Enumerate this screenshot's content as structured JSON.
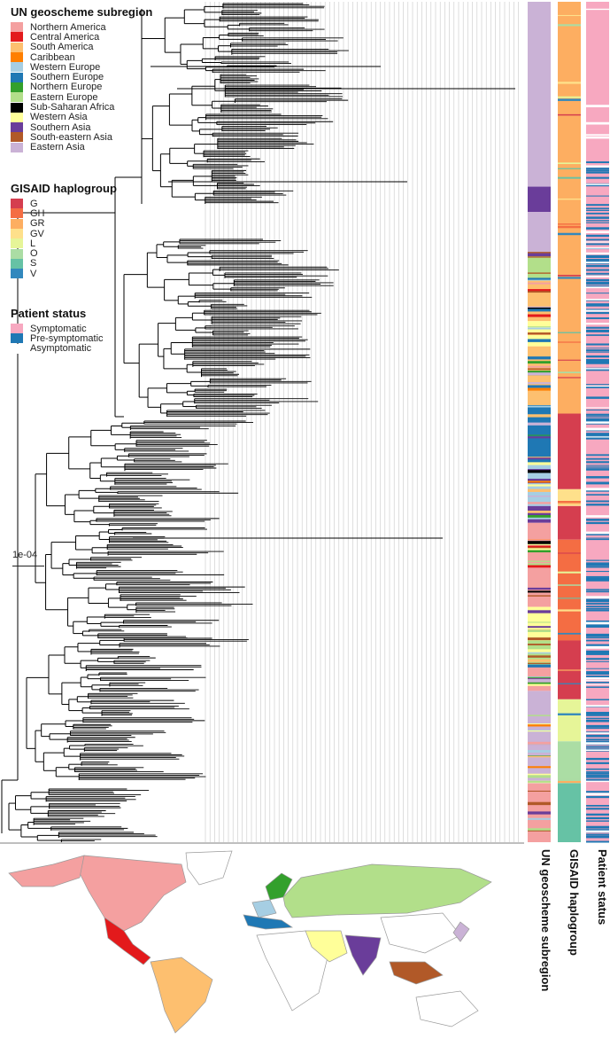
{
  "legend_region": {
    "title": "UN geoscheme subregion",
    "items": [
      {
        "label": "Northern America",
        "color": "#f4a0a0"
      },
      {
        "label": "Central America",
        "color": "#e31a1c"
      },
      {
        "label": "South America",
        "color": "#fdbf6f"
      },
      {
        "label": "Caribbean",
        "color": "#ff7f00"
      },
      {
        "label": "Western Europe",
        "color": "#a6cee3"
      },
      {
        "label": "Southern Europe",
        "color": "#1f78b4"
      },
      {
        "label": "Northern Europe",
        "color": "#33a02c"
      },
      {
        "label": "Eastern Europe",
        "color": "#b2df8a"
      },
      {
        "label": "Sub-Saharan Africa",
        "color": "#000000"
      },
      {
        "label": "Western Asia",
        "color": "#ffff99"
      },
      {
        "label": "Southern Asia",
        "color": "#6a3d9a"
      },
      {
        "label": "South-eastern Asia",
        "color": "#b15928"
      },
      {
        "label": "Eastern Asia",
        "color": "#cab2d6"
      }
    ]
  },
  "legend_haplo": {
    "title": "GISAID haplogroup",
    "items": [
      {
        "label": "G",
        "color": "#d53e4f"
      },
      {
        "label": "GH",
        "color": "#f46d43"
      },
      {
        "label": "GR",
        "color": "#fdae61"
      },
      {
        "label": "GV",
        "color": "#fee08b"
      },
      {
        "label": "L",
        "color": "#e6f598"
      },
      {
        "label": "O",
        "color": "#abdda4"
      },
      {
        "label": "S",
        "color": "#66c2a5"
      },
      {
        "label": "V",
        "color": "#3288bd"
      }
    ]
  },
  "legend_status": {
    "title": "Patient status",
    "items": [
      {
        "label": "Symptomatic",
        "color": "#f7a8c0"
      },
      {
        "label": "Pre-symptomatic",
        "color": "#1f78b4"
      },
      {
        "label": "Asymptomatic",
        "color": "#ffffff"
      }
    ]
  },
  "scale_bar": {
    "label": "1e-04"
  },
  "columns": {
    "region": "UN geoscheme subregion",
    "haplo": "GISAID haplogroup",
    "status": "Patient status"
  },
  "haplo_blocks": [
    {
      "group": "GR",
      "from": 0,
      "to": 0.49
    },
    {
      "group": "G",
      "from": 0.49,
      "to": 0.58
    },
    {
      "group": "GV",
      "from": 0.58,
      "to": 0.6
    },
    {
      "group": "G",
      "from": 0.6,
      "to": 0.64
    },
    {
      "group": "GH",
      "from": 0.64,
      "to": 0.76
    },
    {
      "group": "G",
      "from": 0.76,
      "to": 0.83
    },
    {
      "group": "L",
      "from": 0.83,
      "to": 0.88
    },
    {
      "group": "O",
      "from": 0.88,
      "to": 0.93
    },
    {
      "group": "S",
      "from": 0.93,
      "to": 1.0
    }
  ],
  "region_blocks": [
    {
      "region": "Eastern Asia",
      "from": 0,
      "to": 0.22
    },
    {
      "region": "Southern Asia",
      "from": 0.22,
      "to": 0.25
    },
    {
      "region": "Eastern Asia",
      "from": 0.25,
      "to": 0.3
    },
    {
      "region": "Eastern Europe",
      "from": 0.3,
      "to": 0.33
    },
    {
      "region": "South America",
      "from": 0.33,
      "to": 0.38
    },
    {
      "region": "Western Asia",
      "from": 0.38,
      "to": 0.41
    },
    {
      "region": "South America",
      "from": 0.41,
      "to": 0.48
    },
    {
      "region": "Southern Europe",
      "from": 0.48,
      "to": 0.55
    },
    {
      "region": "Western Europe",
      "from": 0.55,
      "to": 0.6
    },
    {
      "region": "Southern Asia",
      "from": 0.6,
      "to": 0.62
    },
    {
      "region": "Northern America",
      "from": 0.62,
      "to": 0.72
    },
    {
      "region": "Western Asia",
      "from": 0.72,
      "to": 0.76
    },
    {
      "region": "Eastern Europe",
      "from": 0.76,
      "to": 0.79
    },
    {
      "region": "Northern America",
      "from": 0.79,
      "to": 0.82
    },
    {
      "region": "Eastern Asia",
      "from": 0.82,
      "to": 0.93
    },
    {
      "region": "Northern America",
      "from": 0.93,
      "to": 1.0
    }
  ],
  "map_regions": [
    {
      "name": "Northern America",
      "color": "#f4a0a0"
    },
    {
      "name": "Central America",
      "color": "#e31a1c"
    },
    {
      "name": "South America",
      "color": "#fdbf6f"
    },
    {
      "name": "Northern Europe",
      "color": "#33a02c"
    },
    {
      "name": "Eastern Europe",
      "color": "#b2df8a"
    },
    {
      "name": "Western Europe",
      "color": "#a6cee3"
    },
    {
      "name": "Southern Europe",
      "color": "#1f78b4"
    },
    {
      "name": "Western Asia",
      "color": "#ffff99"
    },
    {
      "name": "Southern Asia",
      "color": "#6a3d9a"
    },
    {
      "name": "South-eastern Asia",
      "color": "#b15928"
    },
    {
      "name": "Eastern Asia",
      "color": "#cab2d6"
    }
  ]
}
